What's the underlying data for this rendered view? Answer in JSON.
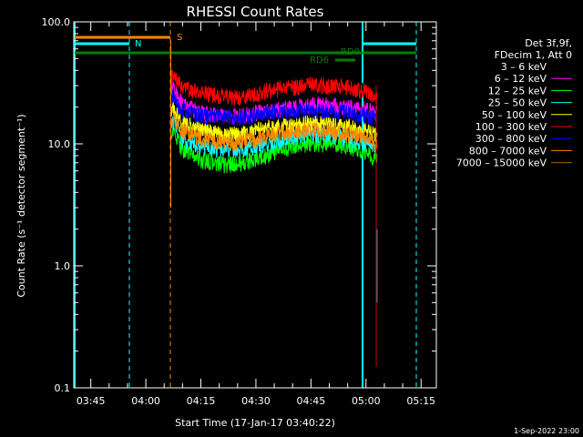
{
  "chart_data": {
    "type": "line",
    "title": "RHESSI Count Rates",
    "xlabel": "Start Time (17-Jan-17 03:40:22)",
    "ylabel": "Count Rate (s⁻¹ detector segment⁻¹)",
    "y_scale": "log",
    "ylim": [
      0.1,
      100.0
    ],
    "y_ticks": [
      "0.1",
      "1.0",
      "10.0",
      "100.0"
    ],
    "xlim": [
      "03:40:22",
      "05:19:10"
    ],
    "x_ticks": [
      "03:45",
      "04:00",
      "04:15",
      "04:30",
      "04:45",
      "05:00",
      "05:15"
    ],
    "grid": false,
    "legend": {
      "placement": "right",
      "header": [
        "Det 3f,9f,",
        "FDecim 1, Att 0"
      ],
      "entries": [
        {
          "label": "3 – 6 keV",
          "color": "#000000"
        },
        {
          "label": "6 – 12 keV",
          "color": "#ff00ff"
        },
        {
          "label": "12 – 25 keV",
          "color": "#00ff00"
        },
        {
          "label": "25 – 50 keV",
          "color": "#00ffff"
        },
        {
          "label": "50 – 100 keV",
          "color": "#ffff00"
        },
        {
          "label": "100 – 300 keV",
          "color": "#ff0000"
        },
        {
          "label": "300 – 800 keV",
          "color": "#0000ff"
        },
        {
          "label": "800 – 7000 keV",
          "color": "#ff8800"
        },
        {
          "label": "7000 – 15000 keV",
          "color": "#996600"
        }
      ]
    },
    "series": [
      {
        "name": "3 – 6 keV",
        "color": "#000000",
        "x": [
          "04:07",
          "04:10",
          "04:15",
          "04:20",
          "04:25",
          "04:30",
          "04:35",
          "04:40",
          "04:45",
          "04:50",
          "04:55",
          "05:00",
          "05:03"
        ],
        "y": [
          38,
          30,
          27,
          26,
          25,
          27,
          29,
          30,
          32,
          31,
          30,
          28,
          25
        ]
      },
      {
        "name": "6 – 12 keV",
        "color": "#ff00ff",
        "x": [
          "04:07",
          "04:10",
          "04:15",
          "04:20",
          "04:25",
          "04:30",
          "04:35",
          "04:40",
          "04:45",
          "04:50",
          "04:55",
          "05:00",
          "05:03"
        ],
        "y": [
          30,
          21,
          18,
          17,
          17,
          18,
          19,
          20,
          21,
          21,
          20,
          19,
          18
        ]
      },
      {
        "name": "12 – 25 keV",
        "color": "#00ff00",
        "x": [
          "04:07",
          "04:10",
          "04:15",
          "04:20",
          "04:25",
          "04:30",
          "04:35",
          "04:40",
          "04:45",
          "04:50",
          "04:55",
          "05:00",
          "05:03"
        ],
        "y": [
          13,
          9,
          7.5,
          6.8,
          6.8,
          7.5,
          8.5,
          9.5,
          10,
          10,
          9.5,
          8.5,
          7.5
        ]
      },
      {
        "name": "25 – 50 keV",
        "color": "#00ffff",
        "x": [
          "04:07",
          "04:10",
          "04:15",
          "04:20",
          "04:25",
          "04:30",
          "04:35",
          "04:40",
          "04:45",
          "04:50",
          "04:55",
          "05:00",
          "05:03"
        ],
        "y": [
          16,
          11,
          9.5,
          9,
          9,
          9.5,
          10.5,
          11.5,
          12,
          12,
          11,
          10,
          9
        ]
      },
      {
        "name": "50 – 100 keV",
        "color": "#ffff00",
        "x": [
          "04:07",
          "04:10",
          "04:15",
          "04:20",
          "04:25",
          "04:30",
          "04:35",
          "04:40",
          "04:45",
          "04:50",
          "04:55",
          "05:00",
          "05:03"
        ],
        "y": [
          20,
          15,
          13,
          12,
          12,
          13,
          14,
          14,
          15,
          14.5,
          14,
          13,
          12
        ]
      },
      {
        "name": "100 – 300 keV",
        "color": "#ff0000",
        "x": [
          "04:07",
          "04:10",
          "04:15",
          "04:20",
          "04:25",
          "04:30",
          "04:35",
          "04:40",
          "04:45",
          "04:50",
          "04:55",
          "05:00",
          "05:03"
        ],
        "y": [
          36,
          29,
          26,
          25,
          24,
          26,
          28,
          29,
          31,
          30,
          29,
          27,
          24
        ]
      },
      {
        "name": "300 – 800 keV",
        "color": "#0000ff",
        "x": [
          "04:07",
          "04:10",
          "04:15",
          "04:20",
          "04:25",
          "04:30",
          "04:35",
          "04:40",
          "04:45",
          "04:50",
          "04:55",
          "05:00",
          "05:03"
        ],
        "y": [
          24,
          19,
          17,
          17,
          16.5,
          17,
          18,
          18.5,
          19,
          18.5,
          18,
          17,
          16
        ]
      },
      {
        "name": "800 – 7000 keV",
        "color": "#ff8800",
        "x": [
          "04:07",
          "04:10",
          "04:15",
          "04:20",
          "04:25",
          "04:30",
          "04:35",
          "04:40",
          "04:45",
          "04:50",
          "04:55",
          "05:00",
          "05:03"
        ],
        "y": [
          17,
          13,
          11,
          10.5,
          10.5,
          11,
          12,
          12.5,
          13,
          12.5,
          12,
          11,
          10
        ]
      }
    ],
    "markers": [
      {
        "label": "N",
        "color": "#00ffff"
      },
      {
        "label": "S",
        "color": "#ff8800"
      },
      {
        "label": "RD6",
        "color": "#008000"
      },
      {
        "label": "RD0",
        "color": "#008000"
      }
    ]
  },
  "footer": {
    "date": "1-Sep-2022 23:00"
  }
}
